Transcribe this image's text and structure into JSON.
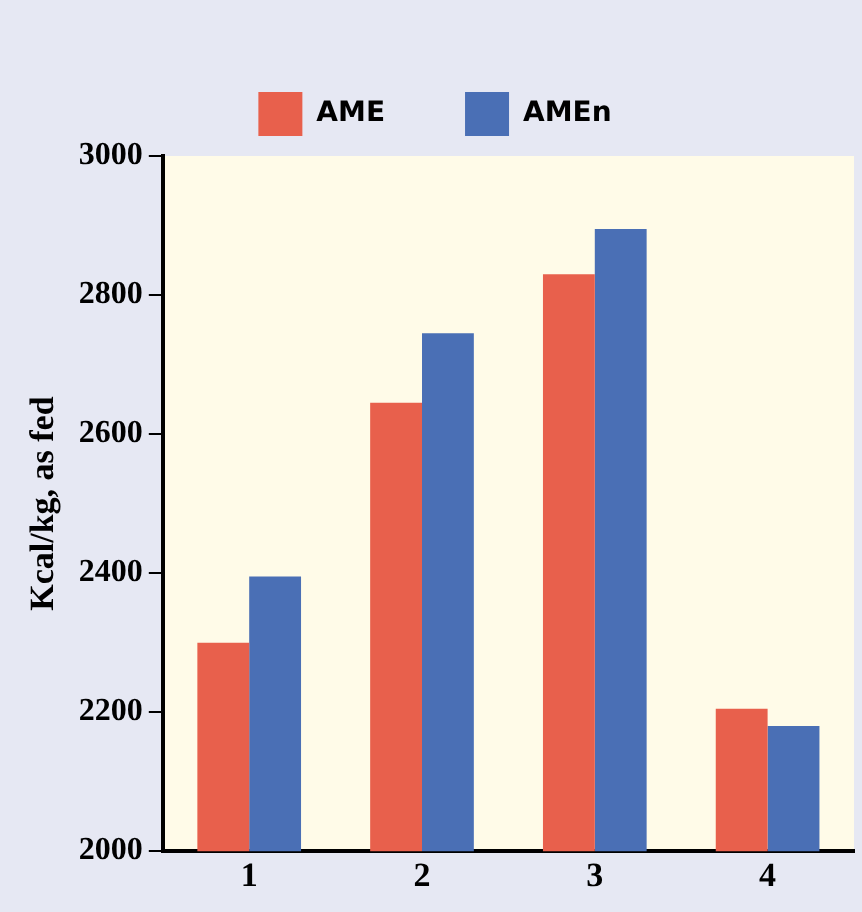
{
  "chart_data": {
    "type": "bar",
    "ylabel": "Kcal/kg, as fed",
    "categories": [
      "1",
      "2",
      "3",
      "4"
    ],
    "series": [
      {
        "name": "AME",
        "color": "#e8604c",
        "values": [
          2300,
          2645,
          2830,
          2205
        ]
      },
      {
        "name": "AMEn",
        "color": "#4a6fb5",
        "values": [
          2395,
          2745,
          2895,
          2180
        ]
      }
    ],
    "ylim": [
      2000,
      3000
    ],
    "yticks": [
      2000,
      2200,
      2400,
      2600,
      2800,
      3000
    ],
    "grid": false,
    "legend": "top"
  }
}
